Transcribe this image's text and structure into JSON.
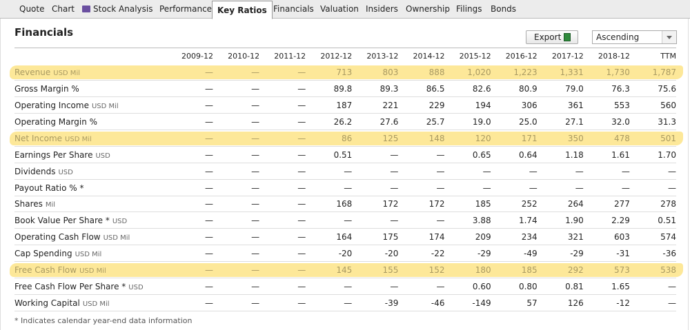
{
  "nav": {
    "tabs": [
      "Quote",
      "Chart",
      "Stock Analysis",
      "Performance",
      "Key Ratios",
      "Financials",
      "Valuation",
      "Insiders",
      "Ownership",
      "Filings",
      "Bonds"
    ],
    "active": 4
  },
  "section": {
    "title": "Financials",
    "export": "Export",
    "order": "Ascending"
  },
  "table": {
    "columns": [
      "2009-12",
      "2010-12",
      "2011-12",
      "2012-12",
      "2013-12",
      "2014-12",
      "2015-12",
      "2016-12",
      "2017-12",
      "2018-12",
      "TTM"
    ],
    "rows": [
      {
        "label": "Revenue",
        "unit": "USD Mil",
        "highlighted": true,
        "values": [
          "—",
          "—",
          "—",
          "713",
          "803",
          "888",
          "1,020",
          "1,223",
          "1,331",
          "1,730",
          "1,787"
        ]
      },
      {
        "label": "Gross Margin %",
        "values": [
          "—",
          "—",
          "—",
          "89.8",
          "89.3",
          "86.5",
          "82.6",
          "80.9",
          "79.0",
          "76.3",
          "75.6"
        ]
      },
      {
        "label": "Operating Income",
        "unit": "USD Mil",
        "values": [
          "—",
          "—",
          "—",
          "187",
          "221",
          "229",
          "194",
          "306",
          "361",
          "553",
          "560"
        ]
      },
      {
        "label": "Operating Margin %",
        "values": [
          "—",
          "—",
          "—",
          "26.2",
          "27.6",
          "25.7",
          "19.0",
          "25.0",
          "27.1",
          "32.0",
          "31.3"
        ]
      },
      {
        "label": "Net Income",
        "unit": "USD Mil",
        "highlighted": true,
        "values": [
          "—",
          "—",
          "—",
          "86",
          "125",
          "148",
          "120",
          "171",
          "350",
          "478",
          "501"
        ]
      },
      {
        "label": "Earnings Per Share",
        "unit": "USD",
        "values": [
          "—",
          "—",
          "—",
          "0.51",
          "—",
          "—",
          "0.65",
          "0.64",
          "1.18",
          "1.61",
          "1.70"
        ]
      },
      {
        "label": "Dividends",
        "unit": "USD",
        "values": [
          "—",
          "—",
          "—",
          "—",
          "—",
          "—",
          "—",
          "—",
          "—",
          "—",
          "—"
        ]
      },
      {
        "label": "Payout Ratio % *",
        "values": [
          "—",
          "—",
          "—",
          "—",
          "—",
          "—",
          "—",
          "—",
          "—",
          "—",
          "—"
        ]
      },
      {
        "label": "Shares",
        "unit": "Mil",
        "values": [
          "—",
          "—",
          "—",
          "168",
          "172",
          "172",
          "185",
          "252",
          "264",
          "277",
          "278"
        ]
      },
      {
        "label": "Book Value Per Share *",
        "unit": "USD",
        "values": [
          "—",
          "—",
          "—",
          "—",
          "—",
          "—",
          "3.88",
          "1.74",
          "1.90",
          "2.29",
          "0.51"
        ]
      },
      {
        "label": "Operating Cash Flow",
        "unit": "USD Mil",
        "values": [
          "—",
          "—",
          "—",
          "164",
          "175",
          "174",
          "209",
          "234",
          "321",
          "603",
          "574"
        ]
      },
      {
        "label": "Cap Spending",
        "unit": "USD Mil",
        "values": [
          "—",
          "—",
          "—",
          "-20",
          "-20",
          "-22",
          "-29",
          "-49",
          "-29",
          "-31",
          "-36"
        ]
      },
      {
        "label": "Free Cash Flow",
        "unit": "USD Mil",
        "highlighted": true,
        "values": [
          "—",
          "—",
          "—",
          "145",
          "155",
          "152",
          "180",
          "185",
          "292",
          "573",
          "538"
        ]
      },
      {
        "label": "Free Cash Flow Per Share *",
        "unit": "USD",
        "values": [
          "—",
          "—",
          "—",
          "—",
          "—",
          "—",
          "0.60",
          "0.80",
          "0.81",
          "1.65",
          "—"
        ]
      },
      {
        "label": "Working Capital",
        "unit": "USD Mil",
        "values": [
          "—",
          "—",
          "—",
          "—",
          "-39",
          "-46",
          "-149",
          "57",
          "126",
          "-12",
          "—"
        ]
      }
    ]
  },
  "footnote": "* Indicates calendar year-end data information"
}
